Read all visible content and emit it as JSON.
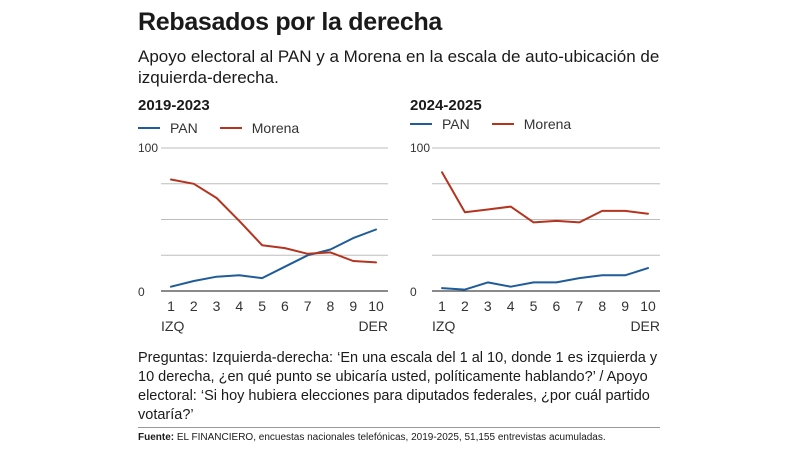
{
  "title": "Rebasados por la derecha",
  "subtitle": "Apoyo electoral al PAN y a Morena en la escala de auto-ubicación de izquierda-derecha.",
  "notes": "Preguntas: Izquierda-derecha: ‘En una escala del 1 al 10, donde 1 es izquierda y 10 derecha, ¿en qué punto se ubicaría usted, políticamente hablando?’ / Apoyo electoral: ‘Si hoy hubiera elecciones para diputados federales, ¿por cuál partido votaría?’",
  "source": {
    "label": "Fuente:",
    "text": "EL FINANCIERO, encuestas nacionales telefónicas, 2019-2025, 51,155 entrevistas acumuladas."
  },
  "colors": {
    "pan": "#1f5c99",
    "morena": "#b5341f",
    "grid": "#bdbdbd",
    "axis": "#444444"
  },
  "chart_data": [
    {
      "type": "line",
      "title": "2019-2023",
      "x": [
        1,
        2,
        3,
        4,
        5,
        6,
        7,
        8,
        9,
        10
      ],
      "ylim": [
        0,
        100
      ],
      "ytick_labels": [
        "0",
        "100"
      ],
      "x_end_labels": {
        "left": "IZQ",
        "right": "DER"
      },
      "grid": true,
      "legend": "top-left",
      "series": [
        {
          "name": "PAN",
          "color": "#1f5c99",
          "values": [
            3,
            7,
            10,
            11,
            9,
            17,
            25,
            29,
            37,
            43
          ]
        },
        {
          "name": "Morena",
          "color": "#b5341f",
          "values": [
            78,
            75,
            65,
            49,
            32,
            30,
            26,
            27,
            21,
            20
          ]
        }
      ]
    },
    {
      "type": "line",
      "title": "2024-2025",
      "x": [
        1,
        2,
        3,
        4,
        5,
        6,
        7,
        8,
        9,
        10
      ],
      "ylim": [
        0,
        100
      ],
      "ytick_labels": [
        "0",
        "100"
      ],
      "x_end_labels": {
        "left": "IZQ",
        "right": "DER"
      },
      "grid": true,
      "legend": "top-left",
      "series": [
        {
          "name": "PAN",
          "color": "#1f5c99",
          "values": [
            2,
            1,
            6,
            3,
            6,
            6,
            9,
            11,
            11,
            16
          ]
        },
        {
          "name": "Morena",
          "color": "#b5341f",
          "values": [
            83,
            55,
            57,
            59,
            48,
            49,
            48,
            56,
            56,
            54
          ]
        }
      ]
    }
  ]
}
